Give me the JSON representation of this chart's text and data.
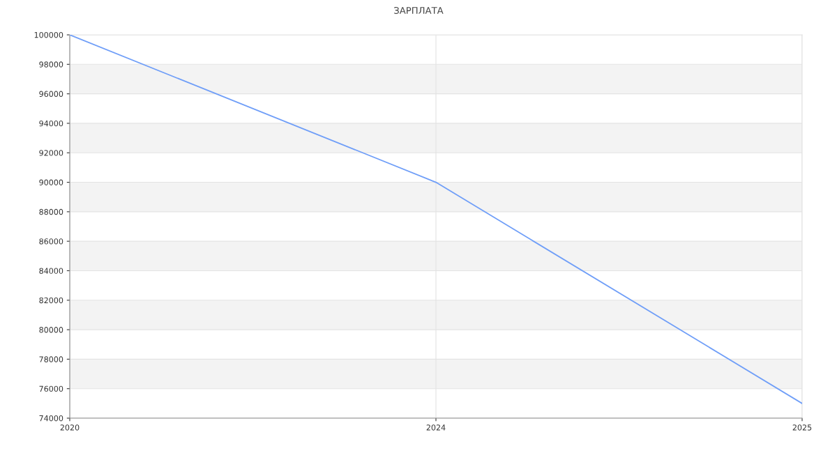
{
  "chart_data": {
    "type": "line",
    "title": "ЗАРПЛАТА",
    "categories": [
      "2020",
      "2024",
      "2025"
    ],
    "series": [
      {
        "color": "#6f9ef8",
        "values": [
          100000,
          90000,
          75000
        ]
      }
    ],
    "ylim": [
      74000,
      100000
    ],
    "yticks": [
      74000,
      76000,
      78000,
      80000,
      82000,
      84000,
      86000,
      88000,
      90000,
      92000,
      94000,
      96000,
      98000,
      100000
    ],
    "grid": true,
    "marker": "none",
    "line_style": "solid"
  }
}
